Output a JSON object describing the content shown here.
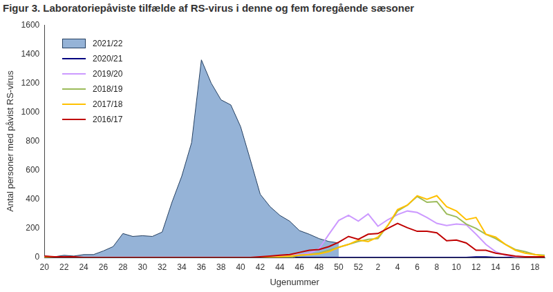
{
  "chart_data": {
    "type": "line",
    "title": "Figur 3. Laboratoriepåviste tilfælde af RS-virus i denne og fem foregående sæsoner",
    "xlabel": "Ugenummer",
    "ylabel": "Antal personer med påvist RS-virus",
    "categories": [
      "20",
      null,
      "22",
      null,
      "24",
      null,
      "26",
      null,
      "28",
      null,
      "30",
      null,
      "32",
      null,
      "34",
      null,
      "36",
      null,
      "38",
      null,
      "40",
      null,
      "42",
      null,
      "44",
      null,
      "46",
      null,
      "48",
      null,
      "50",
      null,
      "52",
      null,
      "2",
      null,
      "4",
      null,
      "6",
      null,
      "8",
      null,
      "10",
      null,
      "12",
      null,
      "14",
      null,
      "16",
      null,
      "18",
      null
    ],
    "ylim": [
      0,
      1600
    ],
    "yticks": [
      0,
      200,
      400,
      600,
      800,
      1000,
      1200,
      1400,
      1600
    ],
    "grid": false,
    "legend": "upper left",
    "series": [
      {
        "name": "2021/22",
        "type": "area",
        "color": "#95B3D7",
        "values": [
          10,
          5,
          15,
          10,
          20,
          20,
          45,
          75,
          165,
          145,
          150,
          145,
          175,
          380,
          560,
          790,
          1360,
          1200,
          1085,
          1050,
          900,
          670,
          435,
          350,
          290,
          250,
          185,
          160,
          130,
          110,
          100,
          null,
          null,
          null,
          null,
          null,
          null,
          null,
          null,
          null,
          null,
          null,
          null,
          null,
          null,
          null,
          null,
          null,
          null,
          null,
          null,
          null
        ]
      },
      {
        "name": "2020/21",
        "type": "line",
        "color": "#000080",
        "values": [
          0,
          0,
          0,
          0,
          0,
          0,
          0,
          0,
          0,
          0,
          0,
          0,
          0,
          0,
          0,
          0,
          0,
          0,
          0,
          0,
          0,
          0,
          0,
          0,
          0,
          0,
          0,
          0,
          0,
          0,
          0,
          0,
          0,
          0,
          0,
          0,
          0,
          0,
          0,
          0,
          0,
          0,
          0,
          0,
          3,
          3,
          0,
          0,
          0,
          0,
          0,
          0
        ]
      },
      {
        "name": "2019/20",
        "type": "line",
        "color": "#CC99FF",
        "values": [
          5,
          5,
          5,
          0,
          0,
          0,
          0,
          0,
          0,
          0,
          0,
          0,
          0,
          0,
          0,
          0,
          0,
          0,
          0,
          0,
          0,
          0,
          0,
          0,
          10,
          15,
          20,
          30,
          60,
          160,
          255,
          290,
          250,
          300,
          215,
          260,
          295,
          320,
          310,
          275,
          235,
          220,
          230,
          225,
          160,
          90,
          40,
          15,
          5,
          0,
          0,
          0
        ]
      },
      {
        "name": "2018/19",
        "type": "line",
        "color": "#9BBB59",
        "values": [
          0,
          0,
          0,
          0,
          0,
          0,
          0,
          0,
          0,
          0,
          0,
          0,
          0,
          0,
          0,
          0,
          0,
          0,
          0,
          0,
          0,
          0,
          0,
          0,
          0,
          0,
          15,
          20,
          30,
          50,
          70,
          90,
          110,
          125,
          130,
          220,
          320,
          360,
          420,
          380,
          385,
          300,
          280,
          230,
          200,
          160,
          130,
          90,
          55,
          40,
          20,
          15
        ]
      },
      {
        "name": "2017/18",
        "type": "line",
        "color": "#FFC000",
        "values": [
          0,
          0,
          0,
          0,
          0,
          0,
          0,
          0,
          0,
          0,
          0,
          0,
          0,
          0,
          0,
          0,
          0,
          0,
          0,
          0,
          0,
          0,
          0,
          0,
          5,
          10,
          15,
          20,
          25,
          40,
          70,
          90,
          120,
          110,
          140,
          220,
          330,
          360,
          425,
          400,
          425,
          350,
          320,
          260,
          275,
          160,
          140,
          90,
          50,
          30,
          20,
          10
        ]
      },
      {
        "name": "2016/17",
        "type": "line",
        "color": "#C00000",
        "values": [
          10,
          5,
          5,
          5,
          0,
          0,
          0,
          0,
          0,
          0,
          0,
          0,
          0,
          0,
          0,
          0,
          0,
          0,
          0,
          0,
          0,
          0,
          5,
          10,
          15,
          20,
          35,
          50,
          55,
          75,
          105,
          145,
          125,
          160,
          165,
          200,
          235,
          205,
          180,
          180,
          170,
          115,
          120,
          100,
          50,
          50,
          30,
          20,
          10,
          5,
          5,
          5
        ]
      }
    ]
  }
}
